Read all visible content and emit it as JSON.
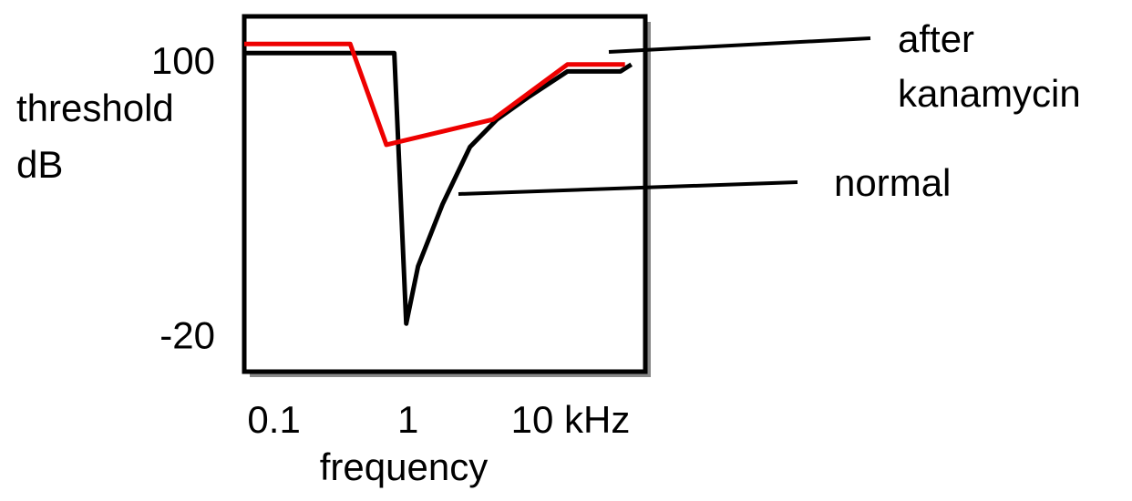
{
  "chart_data": {
    "type": "line",
    "x_label": "frequency",
    "y_label": "threshold dB",
    "xscale": "log",
    "xlim": [
      0.06,
      59
    ],
    "xticks": [
      0.1,
      1,
      {
        "value": 10,
        "label": "10 kHz"
      }
    ],
    "ylim": [
      -36,
      119
    ],
    "yticks": [
      100,
      -20
    ],
    "series": [
      {
        "name": "normal",
        "color": "#000000",
        "x": [
          0.06,
          0.79,
          0.97,
          1.19,
          1.81,
          2.9,
          4.6,
          8.0,
          15.5,
          38.5,
          46.4
        ],
        "values": [
          103,
          103,
          -15,
          10,
          37,
          62,
          74,
          84,
          95,
          95,
          98
        ]
      },
      {
        "name": "after kanamycin",
        "color": "#ee0000",
        "x": [
          0.06,
          0.37,
          0.69,
          4.3,
          15.5,
          41.6
        ],
        "values": [
          107,
          107,
          63,
          74,
          98,
          98
        ]
      }
    ]
  }
}
